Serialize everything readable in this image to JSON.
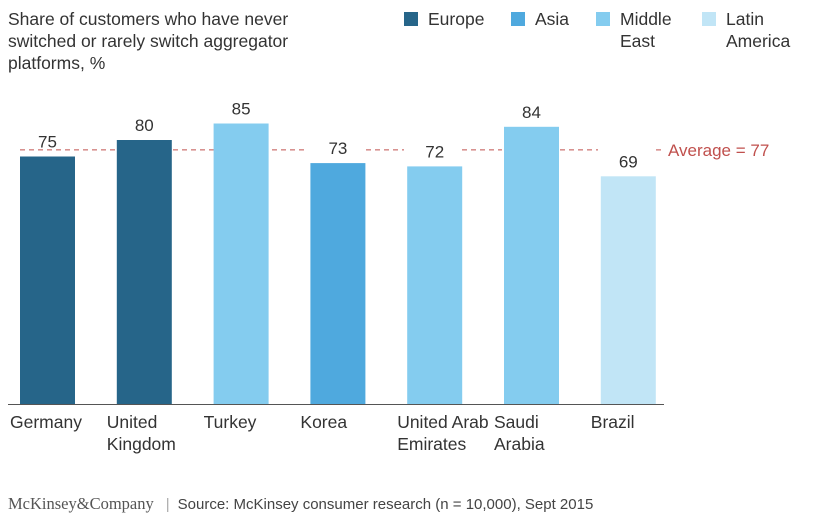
{
  "chart_data": {
    "type": "bar",
    "title": "Share of customers who have never switched or rarely switch aggregator platforms, %",
    "categories": [
      "Germany",
      "United Kingdom",
      "Turkey",
      "Korea",
      "United Arab Emirates",
      "Saudi Arabia",
      "Brazil"
    ],
    "category_lines": [
      [
        "Germany"
      ],
      [
        "United",
        "Kingdom"
      ],
      [
        "Turkey"
      ],
      [
        "Korea"
      ],
      [
        "United Arab",
        "Emirates"
      ],
      [
        "Saudi",
        "Arabia"
      ],
      [
        "Brazil"
      ]
    ],
    "values": [
      75,
      80,
      85,
      73,
      72,
      84,
      69
    ],
    "value_labels": [
      "75",
      "80",
      "85",
      "73",
      "72",
      "84",
      "69"
    ],
    "regions": [
      "Europe",
      "Europe",
      "Middle East",
      "Asia",
      "Middle East",
      "Middle East",
      "Latin America"
    ],
    "legend": [
      {
        "name": "Europe",
        "lines": [
          "Europe"
        ],
        "color": "#266589"
      },
      {
        "name": "Asia",
        "lines": [
          "Asia"
        ],
        "color": "#4fa9de"
      },
      {
        "name": "Middle East",
        "lines": [
          "Middle",
          "East"
        ],
        "color": "#84ccef"
      },
      {
        "name": "Latin America",
        "lines": [
          "Latin",
          "America"
        ],
        "color": "#c1e5f6"
      }
    ],
    "reference_line": {
      "value": 77,
      "label": "Average = 77",
      "color": "#c0504d"
    },
    "ylim": [
      0,
      100
    ],
    "xlabel": "",
    "ylabel": "",
    "grid": false,
    "legend_position": "top-right"
  },
  "footer": {
    "brand": "McKinsey&Company",
    "source": "Source: McKinsey consumer research (n = 10,000), Sept 2015"
  }
}
